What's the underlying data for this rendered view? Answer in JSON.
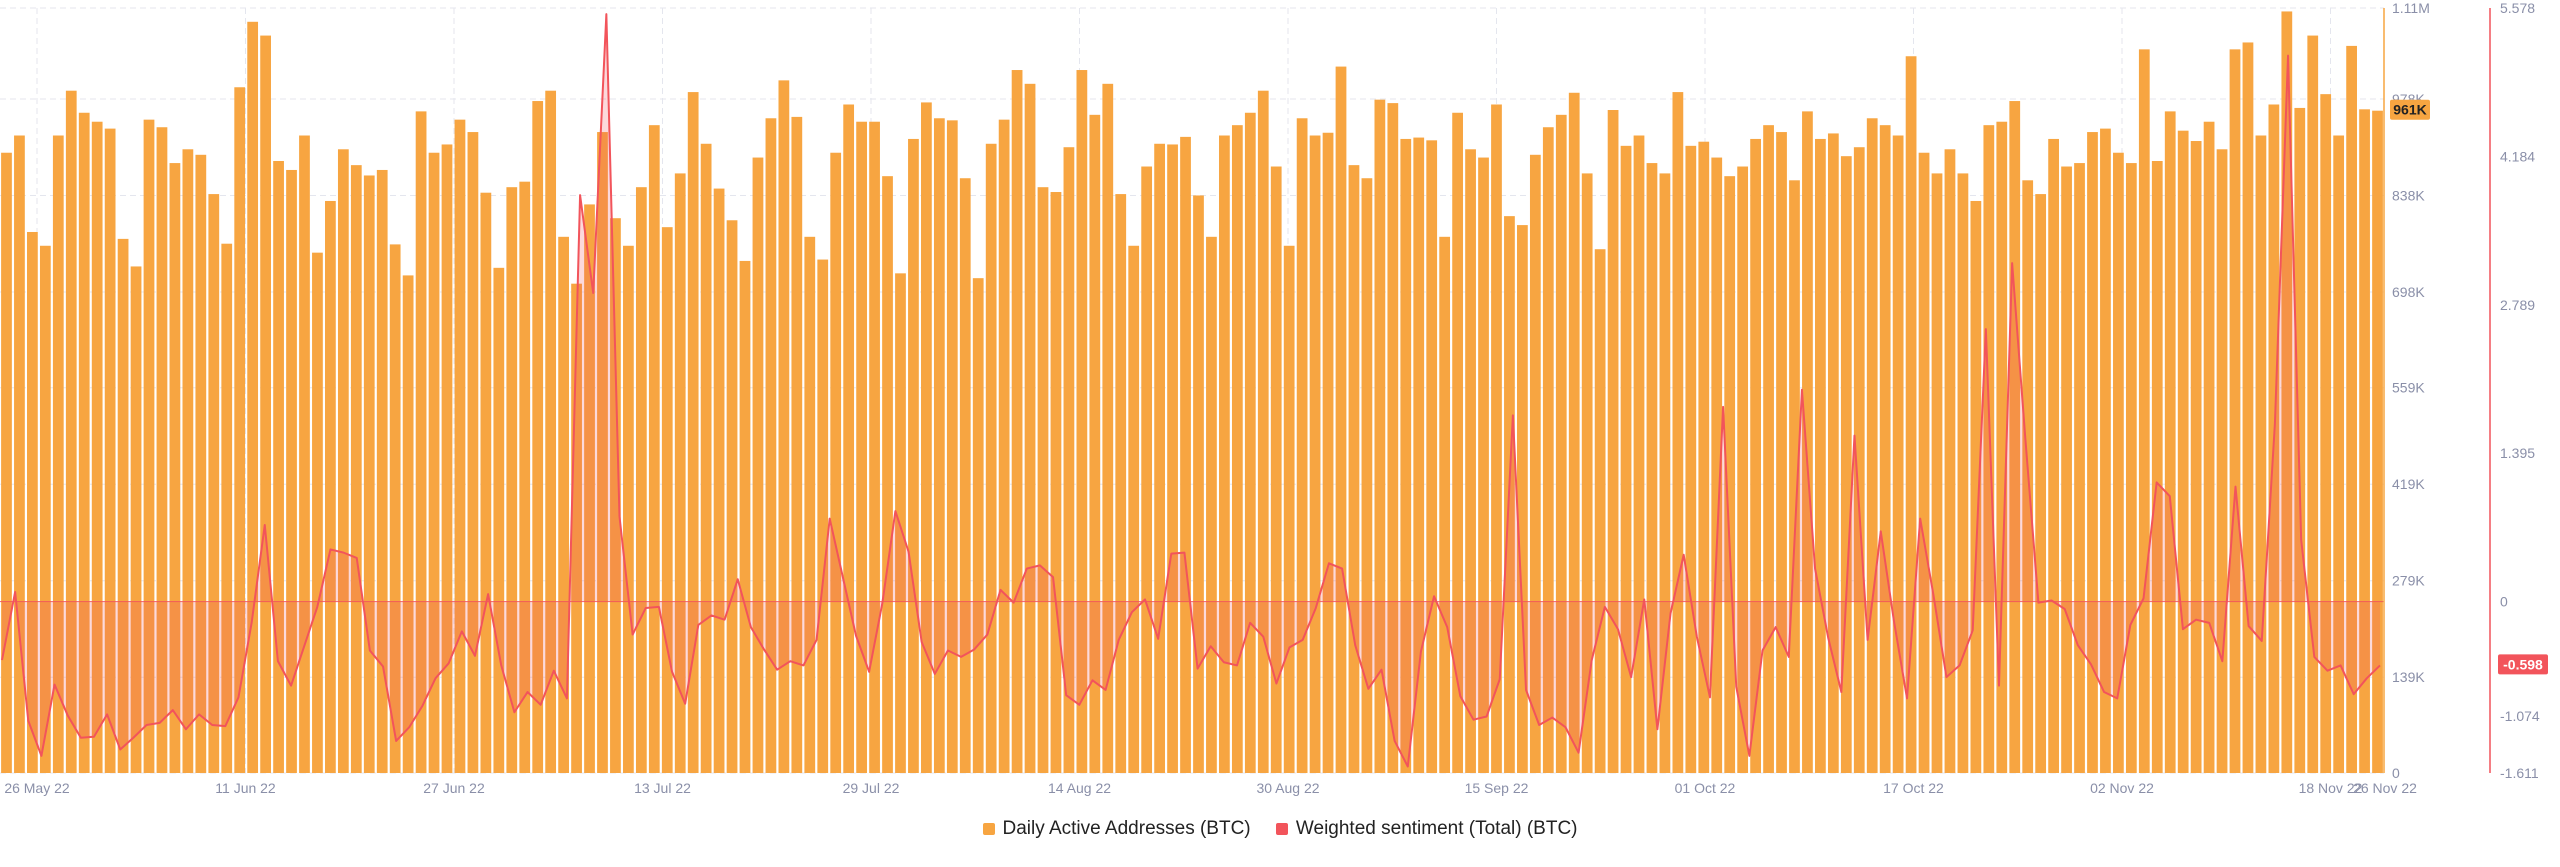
{
  "chart_data": {
    "type": "bar",
    "x_tick_labels": [
      "26 May 22",
      "11 Jun 22",
      "27 Jun 22",
      "13 Jul 22",
      "29 Jul 22",
      "14 Aug 22",
      "30 Aug 22",
      "15 Sep 22",
      "01 Oct 22",
      "17 Oct 22",
      "02 Nov 22",
      "18 Nov 22",
      "26 Nov 22"
    ],
    "left_axis": {
      "ticks": [
        "1.11M",
        "978K",
        "838K",
        "698K",
        "559K",
        "419K",
        "279K",
        "139K",
        "0"
      ],
      "ylim": [
        0,
        1110000
      ],
      "current_value_label": "961K"
    },
    "right_axis": {
      "ticks": [
        "5.578",
        "4.184",
        "2.789",
        "1.395",
        "0",
        "-1.074",
        "-1.611"
      ],
      "ylim": [
        -1.611,
        5.578
      ],
      "current_value_label": "-0.598"
    },
    "legend": [
      {
        "label": "Daily Active Addresses (BTC)",
        "color": "#f7a541"
      },
      {
        "label": "Weighted sentiment (Total) (BTC)",
        "color": "#f2545b"
      }
    ],
    "series": [
      {
        "name": "Daily Active Addresses (BTC)",
        "type": "bar",
        "axis": "left",
        "values": [
          900000,
          925000,
          785000,
          765000,
          925000,
          990000,
          958000,
          945000,
          935000,
          775000,
          735000,
          948000,
          937000,
          885000,
          905000,
          897000,
          840000,
          768000,
          995000,
          1090000,
          1070000,
          888000,
          875000,
          925000,
          755000,
          830000,
          905000,
          882000,
          867000,
          875000,
          767000,
          722000,
          960000,
          900000,
          912000,
          948000,
          930000,
          842000,
          733000,
          850000,
          858000,
          975000,
          990000,
          778000,
          710000,
          825000,
          930000,
          805000,
          765000,
          850000,
          940000,
          792000,
          870000,
          988000,
          913000,
          848000,
          802000,
          743000,
          893000,
          950000,
          1005000,
          952000,
          778000,
          745000,
          900000,
          970000,
          945000,
          945000,
          866000,
          725000,
          920000,
          973000,
          950000,
          947000,
          863000,
          718000,
          913000,
          948000,
          1020000,
          1000000,
          850000,
          843000,
          908000,
          1020000,
          955000,
          1000000,
          840000,
          765000,
          880000,
          913000,
          912000,
          923000,
          838000,
          778000,
          925000,
          940000,
          958000,
          990000,
          880000,
          765000,
          950000,
          925000,
          929000,
          1025000,
          882000,
          863000,
          977000,
          972000,
          920000,
          922000,
          918000,
          778000,
          958000,
          905000,
          893000,
          970000,
          808000,
          795000,
          897000,
          937000,
          955000,
          987000,
          870000,
          760000,
          962000,
          910000,
          925000,
          885000,
          870000,
          988000,
          910000,
          916000,
          893000,
          866000,
          880000,
          920000,
          940000,
          930000,
          860000,
          960000,
          920000,
          928000,
          895000,
          908000,
          950000,
          940000,
          925000,
          1040000,
          900000,
          870000,
          905000,
          870000,
          830000,
          940000,
          945000,
          975000,
          860000,
          840000,
          920000,
          880000,
          885000,
          930000,
          935000,
          900000,
          885000,
          1050000,
          888000,
          960000,
          932000,
          917000,
          945000,
          905000,
          1050000,
          1060000,
          925000,
          970000,
          1105000,
          965000,
          1070000,
          985000,
          925000,
          1055000,
          963000,
          961000
        ],
        "note_count": 214
      },
      {
        "name": "Weighted sentiment (Total) (BTC)",
        "type": "area-line",
        "axis": "right",
        "values": [
          -0.55,
          0.09,
          -1.12,
          -1.45,
          -0.78,
          -1.07,
          -1.28,
          -1.27,
          -1.06,
          -1.39,
          -1.28,
          -1.16,
          -1.14,
          -1.02,
          -1.2,
          -1.06,
          -1.16,
          -1.17,
          -0.9,
          -0.2,
          0.72,
          -0.56,
          -0.79,
          -0.42,
          -0.05,
          0.49,
          0.46,
          0.41,
          -0.46,
          -0.61,
          -1.31,
          -1.18,
          -0.98,
          -0.72,
          -0.58,
          -0.28,
          -0.51,
          0.07,
          -0.6,
          -1.04,
          -0.85,
          -0.97,
          -0.65,
          -0.91,
          3.82,
          2.9,
          5.52,
          0.8,
          -0.31,
          -0.06,
          -0.05,
          -0.66,
          -0.96,
          -0.22,
          -0.13,
          -0.17,
          0.21,
          -0.24,
          -0.45,
          -0.64,
          -0.56,
          -0.6,
          -0.36,
          0.78,
          0.23,
          -0.32,
          -0.66,
          -0.02,
          0.85,
          0.47,
          -0.38,
          -0.68,
          -0.46,
          -0.52,
          -0.45,
          -0.31,
          0.11,
          -0.01,
          0.31,
          0.34,
          0.23,
          -0.88,
          -0.97,
          -0.74,
          -0.83,
          -0.36,
          -0.1,
          0.02,
          -0.35,
          0.45,
          0.46,
          -0.63,
          -0.42,
          -0.57,
          -0.6,
          -0.2,
          -0.33,
          -0.77,
          -0.43,
          -0.36,
          -0.06,
          0.36,
          0.31,
          -0.41,
          -0.82,
          -0.64,
          -1.31,
          -1.55,
          -0.47,
          0.05,
          -0.24,
          -0.89,
          -1.11,
          -1.08,
          -0.73,
          1.75,
          -0.83,
          -1.16,
          -1.09,
          -1.18,
          -1.42,
          -0.55,
          -0.05,
          -0.26,
          -0.71,
          0.02,
          -1.2,
          -0.11,
          0.44,
          -0.33,
          -0.9,
          1.83,
          -0.8,
          -1.45,
          -0.46,
          -0.24,
          -0.52,
          1.99,
          0.31,
          -0.34,
          -0.85,
          1.56,
          -0.36,
          0.66,
          -0.18,
          -0.91,
          0.78,
          0.07,
          -0.71,
          -0.6,
          -0.27,
          2.56,
          -0.79,
          3.18,
          1.54,
          -0.01,
          0.01,
          -0.07,
          -0.41,
          -0.59,
          -0.85,
          -0.91,
          -0.22,
          0.03,
          1.12,
          0.99,
          -0.26,
          -0.17,
          -0.2,
          -0.56,
          1.08,
          -0.23,
          -0.37,
          1.67,
          5.13,
          0.58,
          -0.52,
          -0.65,
          -0.6,
          -0.87,
          -0.72,
          -0.6
        ],
        "note_count": 187
      }
    ],
    "baseline_right_value": 0,
    "grid": true
  }
}
